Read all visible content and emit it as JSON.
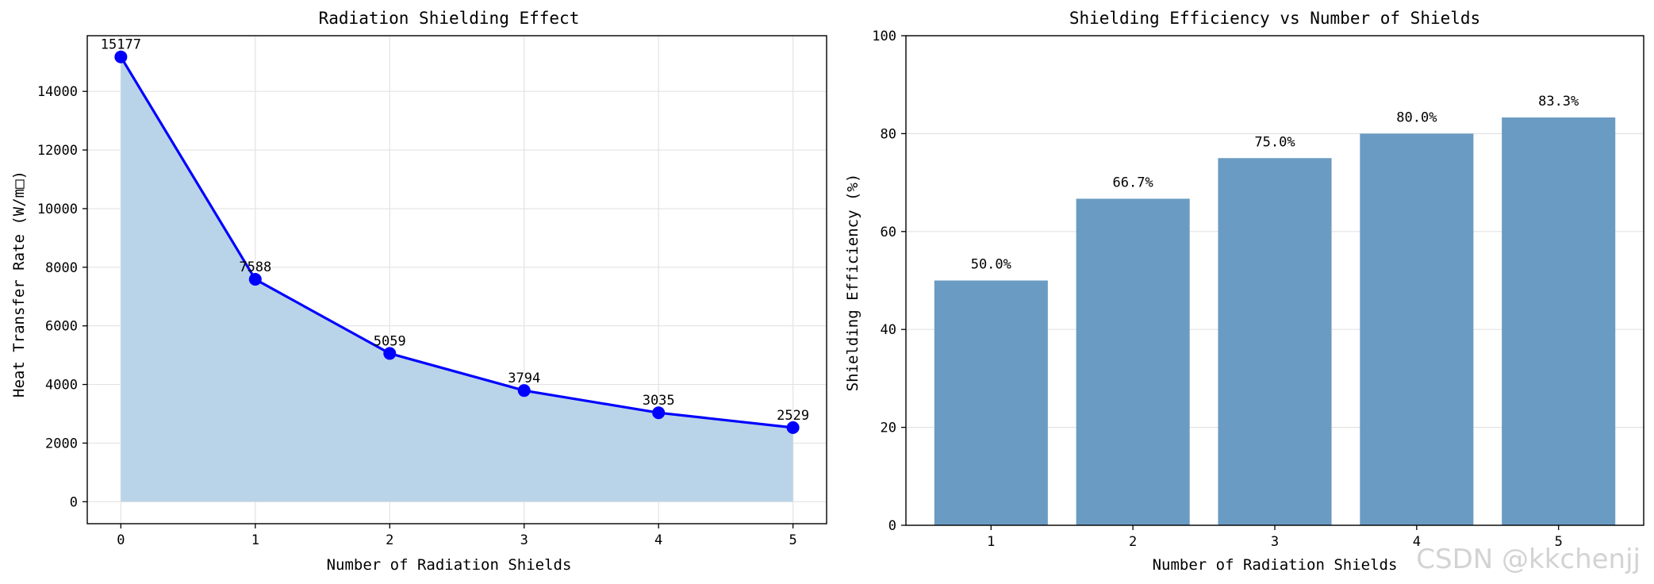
{
  "watermark": "CSDN @kkchenjj",
  "colors": {
    "line": "#0000ff",
    "area_fill": "#b9d4e8",
    "bar_fill": "#6a9bc3"
  },
  "chart_data": [
    {
      "type": "line",
      "title": "Radiation Shielding Effect",
      "xlabel": "Number of Radiation Shields",
      "ylabel": "Heat Transfer Rate (W/m□)",
      "x": [
        0,
        1,
        2,
        3,
        4,
        5
      ],
      "values": [
        15177,
        7588,
        5059,
        3794,
        3035,
        2529
      ],
      "data_labels": [
        "15177",
        "7588",
        "5059",
        "3794",
        "3035",
        "2529"
      ],
      "xlim": [
        -0.25,
        5.25
      ],
      "ylim": [
        -750,
        15900
      ],
      "xticks": [
        0,
        1,
        2,
        3,
        4,
        5
      ],
      "xtick_labels": [
        "0",
        "1",
        "2",
        "3",
        "4",
        "5"
      ],
      "yticks": [
        0,
        2000,
        4000,
        6000,
        8000,
        10000,
        12000,
        14000
      ],
      "ytick_labels": [
        "0",
        "2000",
        "4000",
        "6000",
        "8000",
        "10000",
        "12000",
        "14000"
      ],
      "grid": true,
      "filled_area": true,
      "markers": true
    },
    {
      "type": "bar",
      "title": "Shielding Efficiency vs Number of Shields",
      "xlabel": "Number of Radiation Shields",
      "ylabel": "Shielding Efficiency (%)",
      "categories": [
        "1",
        "2",
        "3",
        "4",
        "5"
      ],
      "values": [
        50.0,
        66.7,
        75.0,
        80.0,
        83.3
      ],
      "data_labels": [
        "50.0%",
        "66.7%",
        "75.0%",
        "80.0%",
        "83.3%"
      ],
      "ylim": [
        0,
        100
      ],
      "yticks": [
        0,
        20,
        40,
        60,
        80,
        100
      ],
      "ytick_labels": [
        "0",
        "20",
        "40",
        "60",
        "80",
        "100"
      ],
      "grid": true
    }
  ]
}
